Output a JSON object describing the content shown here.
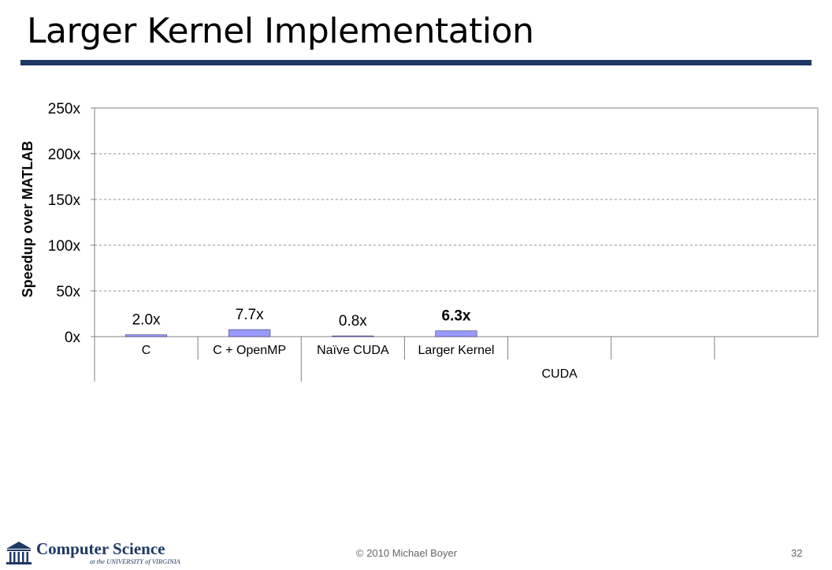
{
  "slide": {
    "title": "Larger Kernel Implementation",
    "footer": "© 2010 Michael Boyer",
    "page_number": "32",
    "logo_text": "Computer Science",
    "logo_subtext": "at the UNIVERSITY of VIRGINIA",
    "title_rule_color": "#1f3864"
  },
  "chart_data": {
    "type": "bar",
    "ylabel": "Speedup over MATLAB",
    "ylim": [
      0,
      250
    ],
    "yticks": [
      0,
      50,
      100,
      150,
      200,
      250
    ],
    "ytick_labels": [
      "0x",
      "50x",
      "100x",
      "150x",
      "200x",
      "250x"
    ],
    "grid": "horizontal-dashed",
    "bar_color": "#9999ff",
    "categories": [
      "C",
      "C + OpenMP",
      "Naïve CUDA",
      "Larger Kernel",
      "",
      "",
      ""
    ],
    "values": [
      2.0,
      7.7,
      0.8,
      6.3,
      null,
      null,
      null
    ],
    "data_labels": [
      "2.0x",
      "7.7x",
      "0.8x",
      "6.3x",
      "",
      "",
      ""
    ],
    "data_label_bold": [
      false,
      false,
      false,
      true,
      false,
      false,
      false
    ],
    "groups": [
      {
        "label": "",
        "span": 2
      },
      {
        "label": "CUDA",
        "span": 5
      }
    ]
  }
}
